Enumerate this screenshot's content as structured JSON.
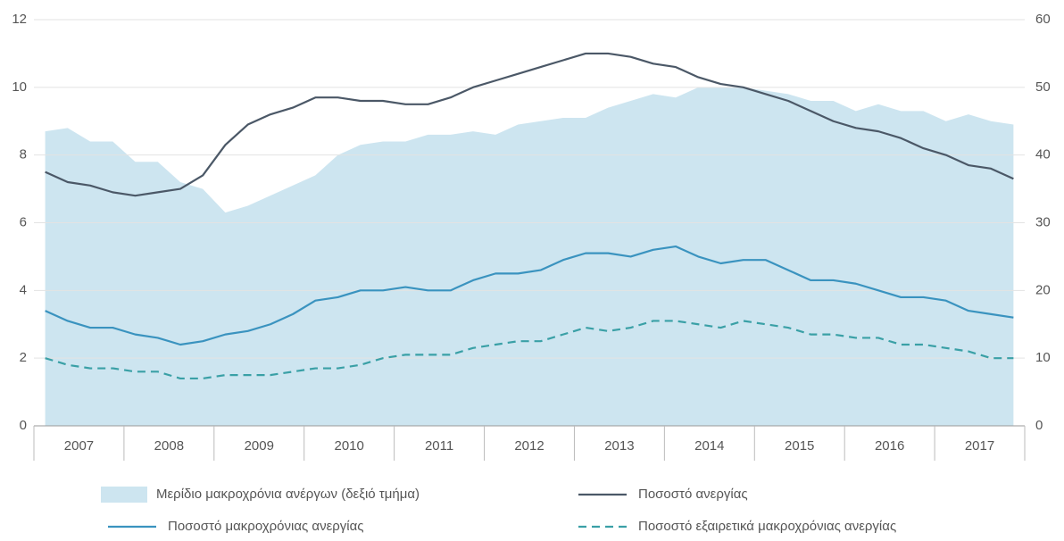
{
  "chart_data": {
    "type": "line",
    "categories": [
      null,
      "2007",
      null,
      null,
      null,
      "2008",
      null,
      null,
      null,
      "2009",
      null,
      null,
      null,
      "2010",
      null,
      null,
      null,
      "2011",
      null,
      null,
      null,
      "2012",
      null,
      null,
      null,
      "2013",
      null,
      null,
      null,
      "2014",
      null,
      null,
      null,
      "2015",
      null,
      null,
      null,
      "2016",
      null,
      null,
      null,
      "2017",
      null,
      null
    ],
    "ylim": [
      0,
      12
    ],
    "yticks": [
      0,
      2,
      4,
      6,
      8,
      10,
      12
    ],
    "y2lim": [
      0,
      60
    ],
    "y2ticks": [
      0,
      10,
      20,
      30,
      40,
      50,
      60
    ],
    "grid": true,
    "series": [
      {
        "name": "Μερίδιο μακροχρόνια ανέργων (δεξιό τμήμα)",
        "type": "area",
        "axis": "y2",
        "color": "#cde5f0",
        "values": [
          43.5,
          44,
          42,
          42,
          39,
          39,
          36,
          35,
          31.5,
          32.5,
          34,
          35.5,
          37,
          40,
          41.5,
          42,
          42,
          43,
          43,
          43.5,
          43,
          44.5,
          45,
          45.5,
          45.5,
          47,
          48,
          49,
          48.5,
          50,
          50,
          50,
          49.5,
          49,
          48,
          48,
          46.5,
          47.5,
          46.5,
          46.5,
          45,
          46,
          45,
          44.5
        ]
      },
      {
        "name": "Ποσοστό ανεργίας",
        "type": "line",
        "color": "#4b5867",
        "values": [
          7.5,
          7.2,
          7.1,
          6.9,
          6.8,
          6.9,
          7.0,
          7.4,
          8.3,
          8.9,
          9.2,
          9.4,
          9.7,
          9.7,
          9.6,
          9.6,
          9.5,
          9.5,
          9.7,
          10.0,
          10.2,
          10.4,
          10.6,
          10.8,
          11.0,
          11.0,
          10.9,
          10.7,
          10.6,
          10.3,
          10.1,
          10.0,
          9.8,
          9.6,
          9.3,
          9.0,
          8.8,
          8.7,
          8.5,
          8.2,
          8.0,
          7.7,
          7.6,
          7.3
        ]
      },
      {
        "name": "Ποσοστό μακροχρόνιας ανεργίας",
        "type": "line",
        "color": "#3a93bf",
        "values": [
          3.4,
          3.1,
          2.9,
          2.9,
          2.7,
          2.6,
          2.4,
          2.5,
          2.7,
          2.8,
          3.0,
          3.3,
          3.7,
          3.8,
          4.0,
          4.0,
          4.1,
          4.0,
          4.0,
          4.3,
          4.5,
          4.5,
          4.6,
          4.9,
          5.1,
          5.1,
          5.0,
          5.2,
          5.3,
          5.0,
          4.8,
          4.9,
          4.9,
          4.6,
          4.3,
          4.3,
          4.2,
          4.0,
          3.8,
          3.8,
          3.7,
          3.4,
          3.3,
          3.2
        ]
      },
      {
        "name": "Ποσοστό εξαιρετικά μακροχρόνιας ανεργίας",
        "type": "dashed",
        "color": "#3aa0a6",
        "values": [
          2.0,
          1.8,
          1.7,
          1.7,
          1.6,
          1.6,
          1.4,
          1.4,
          1.5,
          1.5,
          1.5,
          1.6,
          1.7,
          1.7,
          1.8,
          2.0,
          2.1,
          2.1,
          2.1,
          2.3,
          2.4,
          2.5,
          2.5,
          2.7,
          2.9,
          2.8,
          2.9,
          3.1,
          3.1,
          3.0,
          2.9,
          3.1,
          3.0,
          2.9,
          2.7,
          2.7,
          2.6,
          2.6,
          2.4,
          2.4,
          2.3,
          2.2,
          2.0,
          2.0
        ]
      }
    ]
  }
}
